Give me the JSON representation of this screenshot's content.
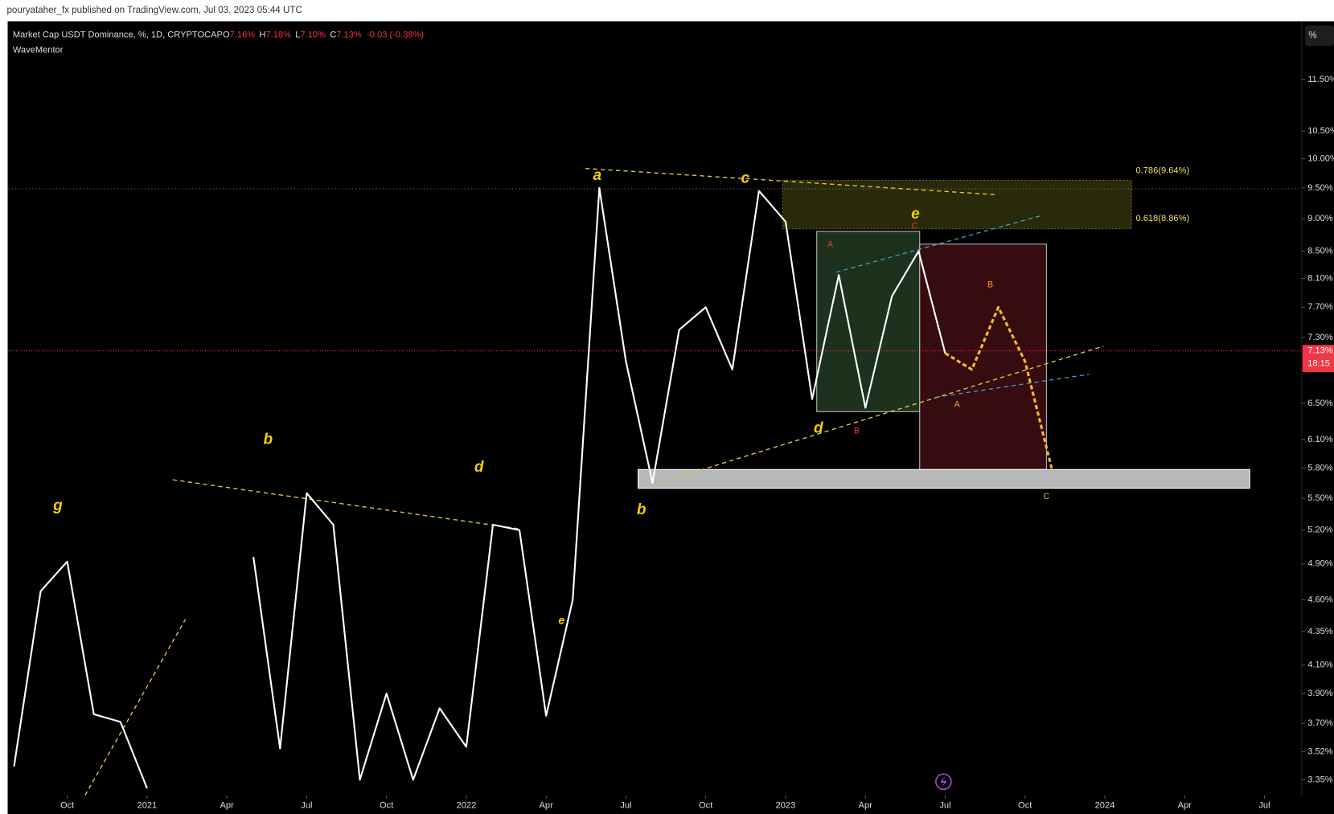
{
  "chart_data": {
    "type": "line",
    "publisher": "pouryataher_fx published on TradingView.com, Jul 03, 2023 05:44 UTC",
    "title": "Market Cap USDT Dominance, %, 1D, CRYPTOCAP",
    "ohlc": [
      {
        "key": "O",
        "value": "7.16%"
      },
      {
        "key": "H",
        "value": "7.18%"
      },
      {
        "key": "L",
        "value": "7.10%"
      },
      {
        "key": "C",
        "value": "7.13%"
      }
    ],
    "change": "-0.03 (-0.38%)",
    "indicator": "WaveMentor",
    "scale_button": "%",
    "last_price": {
      "value": 7.13,
      "label": "7.13%"
    },
    "countdown": "18:15",
    "log_scale": true,
    "x": [
      "2020-08",
      "2020-09",
      "2020-10",
      "2020-11",
      "2020-12",
      "2021-01",
      "2021-03",
      "2021-05",
      "2021-06",
      "2021-07",
      "2021-08",
      "2021-09",
      "2021-10",
      "2021-11",
      "2021-12",
      "2022-01",
      "2022-02",
      "2022-03",
      "2022-04",
      "2022-05",
      "2022-06",
      "2022-07",
      "2022-08",
      "2022-09",
      "2022-10",
      "2022-11",
      "2022-12",
      "2023-01",
      "2023-02",
      "2023-03",
      "2023-04",
      "2023-05",
      "2023-06",
      "2023-07"
    ],
    "series": [
      {
        "color": "#ffffff",
        "values": [
          3.43,
          4.67,
          4.92,
          3.76,
          3.71,
          3.3,
          null,
          4.96,
          3.54,
          5.55,
          5.25,
          3.35,
          3.9,
          3.35,
          3.8,
          3.55,
          5.25,
          5.2,
          3.75,
          4.6,
          9.5,
          7.0,
          5.65,
          7.4,
          7.7,
          6.9,
          9.45,
          8.95,
          6.55,
          8.15,
          6.45,
          7.85,
          8.5,
          7.1
        ]
      },
      {
        "color": "#f5b72e",
        "dashed": true,
        "x": [
          "2023-07",
          "2023-08",
          "2023-09",
          "2023-10",
          "2023-11"
        ],
        "values": [
          7.1,
          6.9,
          7.7,
          7.0,
          5.8
        ]
      }
    ],
    "xlim": [
      "2020-08",
      "2024-08"
    ],
    "xticks": [
      {
        "value": "2020-10",
        "label": "Oct"
      },
      {
        "value": "2021-01",
        "label": "2021"
      },
      {
        "value": "2021-04",
        "label": "Apr"
      },
      {
        "value": "2021-07",
        "label": "Jul"
      },
      {
        "value": "2021-10",
        "label": "Oct"
      },
      {
        "value": "2022-01",
        "label": "2022"
      },
      {
        "value": "2022-04",
        "label": "Apr"
      },
      {
        "value": "2022-07",
        "label": "Jul"
      },
      {
        "value": "2022-10",
        "label": "Oct"
      },
      {
        "value": "2023-01",
        "label": "2023"
      },
      {
        "value": "2023-04",
        "label": "Apr"
      },
      {
        "value": "2023-07",
        "label": "Jul"
      },
      {
        "value": "2023-10",
        "label": "Oct"
      },
      {
        "value": "2024-01",
        "label": "2024"
      },
      {
        "value": "2024-04",
        "label": "Apr"
      },
      {
        "value": "2024-07",
        "label": "Jul"
      }
    ],
    "ylim": [
      3.26,
      12.74
    ],
    "yticks": [
      {
        "value": 11.5,
        "label": "11.50%"
      },
      {
        "value": 10.5,
        "label": "10.50%"
      },
      {
        "value": 10,
        "label": "10.00%"
      },
      {
        "value": 9.5,
        "label": "9.50%"
      },
      {
        "value": 9,
        "label": "9.00%"
      },
      {
        "value": 8.5,
        "label": "8.50%"
      },
      {
        "value": 8.1,
        "label": "8.10%"
      },
      {
        "value": 7.7,
        "label": "7.70%"
      },
      {
        "value": 7.3,
        "label": "7.30%"
      },
      {
        "value": 6.5,
        "label": "6.50%"
      },
      {
        "value": 6.1,
        "label": "6.10%"
      },
      {
        "value": 5.8,
        "label": "5.80%"
      },
      {
        "value": 5.5,
        "label": "5.50%"
      },
      {
        "value": 5.2,
        "label": "5.20%"
      },
      {
        "value": 4.9,
        "label": "4.90%"
      },
      {
        "value": 4.6,
        "label": "4.60%"
      },
      {
        "value": 4.35,
        "label": "4.35%"
      },
      {
        "value": 4.1,
        "label": "4.10%"
      },
      {
        "value": 3.9,
        "label": "3.90%"
      },
      {
        "value": 3.7,
        "label": "3.70%"
      },
      {
        "value": 3.52,
        "label": "3.52%"
      },
      {
        "value": 3.35,
        "label": "3.35%"
      }
    ],
    "fib_labels": [
      "0.786(9.64%)",
      "0.618(8.86%)"
    ],
    "wave_labels": [
      "g",
      "b",
      "d",
      "e",
      "a",
      "b",
      "c",
      "d",
      "e"
    ],
    "sub_labels": [
      "C",
      "A",
      "B"
    ],
    "projection_labels": [
      "B",
      "A",
      "C"
    ]
  }
}
